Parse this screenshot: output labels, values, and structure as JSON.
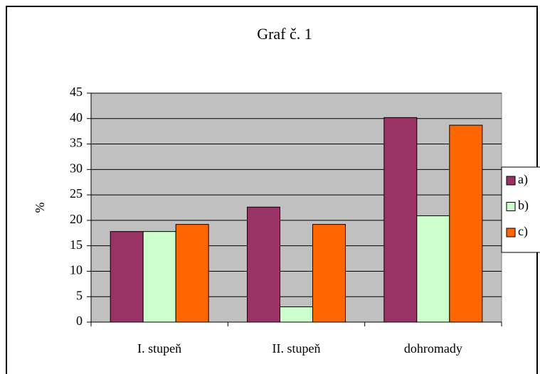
{
  "chart_data": {
    "type": "bar",
    "title": "Graf č. 1",
    "y_label": "%",
    "categories": [
      "I. stupeň",
      "II. stupeň",
      "dohromady"
    ],
    "series": [
      {
        "name": "a)",
        "color": "#993366",
        "values": [
          17.8,
          22.6,
          40.2
        ]
      },
      {
        "name": "b)",
        "color": "#ccffcc",
        "values": [
          17.8,
          3.0,
          20.9
        ]
      },
      {
        "name": "c)",
        "color": "#ff6600",
        "values": [
          19.2,
          19.2,
          38.7
        ]
      }
    ],
    "ylim": [
      0,
      45
    ],
    "yticks": [
      0,
      5,
      10,
      15,
      20,
      25,
      30,
      35,
      40,
      45
    ],
    "grid": true,
    "legend": "right"
  }
}
